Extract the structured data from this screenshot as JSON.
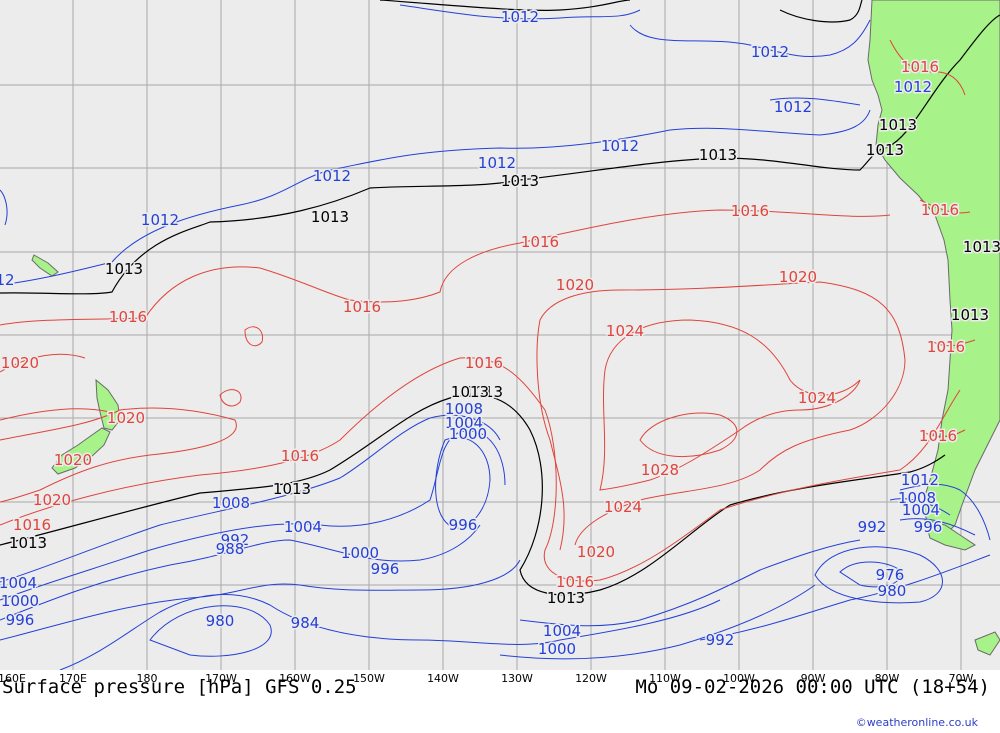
{
  "title": "Surface pressure [hPa] GFS 0.25",
  "valid_time": "Mo 09-02-2026 00:00 UTC (18+54)",
  "credit": "©weatheronline.co.uk",
  "longitude_labels": [
    "160E",
    "170E",
    "180",
    "170W",
    "160W",
    "150W",
    "140W",
    "130W",
    "120W",
    "110W",
    "100W",
    "90W",
    "80W",
    "70W"
  ],
  "colors": {
    "ocean": "#ececec",
    "land": "#a8f28a",
    "grid": "#a9a9a9",
    "low_isobar": "#2440d8",
    "high_isobar": "#e0443c",
    "standard_isobar": "#000000",
    "coast": "#6a6a6a"
  },
  "isobar_labels": {
    "blue": [
      "1012",
      "1012",
      "1012",
      "1012",
      "1012",
      "1012",
      "1012",
      "1012",
      "12",
      "1008",
      "1004",
      "1000",
      "1008",
      "1004",
      "1000",
      "996",
      "992",
      "988",
      "996",
      "1000",
      "1004",
      "996",
      "984",
      "980",
      "1004",
      "1000",
      "992",
      "1008",
      "1004",
      "992",
      "996",
      "976",
      "980",
      "1012"
    ],
    "red": [
      "1016",
      "1016",
      "1016",
      "1016",
      "1016",
      "1016",
      "1016",
      "1016",
      "1016",
      "1020",
      "1020",
      "1020",
      "1020",
      "1020",
      "1020",
      "1020",
      "1024",
      "1024",
      "1024",
      "1028",
      "1016",
      "1016",
      "1016"
    ],
    "black": [
      "1013",
      "1013",
      "1013",
      "1013",
      "1013",
      "1013",
      "1013",
      "1013",
      "1013",
      "1013",
      "1013",
      "1013",
      "1013"
    ]
  }
}
